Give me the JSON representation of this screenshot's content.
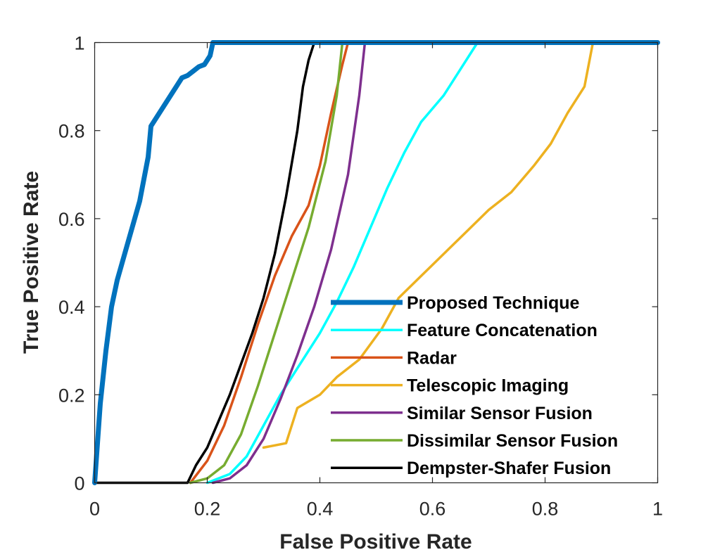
{
  "chart_data": {
    "type": "line",
    "title": "",
    "xlabel": "False Positive Rate",
    "ylabel": "True Positive Rate",
    "xlim": [
      0,
      1
    ],
    "ylim": [
      0,
      1
    ],
    "xticks": [
      0,
      0.2,
      0.4,
      0.6,
      0.8,
      1
    ],
    "yticks": [
      0,
      0.2,
      0.4,
      0.6,
      0.8,
      1
    ],
    "xtick_labels": [
      "0",
      "0.2",
      "0.4",
      "0.6",
      "0.8",
      "1"
    ],
    "ytick_labels": [
      "0",
      "0.2",
      "0.4",
      "0.6",
      "0.8",
      "1"
    ],
    "grid": false,
    "legend_position": "lower-right",
    "series": [
      {
        "name": "Proposed Technique",
        "color": "#0072BD",
        "emphasis": "thick",
        "x": [
          0,
          0.01,
          0.02,
          0.03,
          0.04,
          0.06,
          0.08,
          0.095,
          0.1,
          0.12,
          0.14,
          0.155,
          0.165,
          0.175,
          0.185,
          0.195,
          0.205,
          0.21,
          1
        ],
        "y": [
          0,
          0.18,
          0.3,
          0.4,
          0.46,
          0.55,
          0.64,
          0.74,
          0.81,
          0.85,
          0.89,
          0.92,
          0.925,
          0.935,
          0.945,
          0.95,
          0.97,
          1,
          1
        ]
      },
      {
        "name": "Feature Concatenation",
        "color": "#00FFFF",
        "emphasis": "normal",
        "x": [
          0.2,
          0.24,
          0.27,
          0.3,
          0.33,
          0.36,
          0.4,
          0.43,
          0.46,
          0.49,
          0.52,
          0.55,
          0.58,
          0.62,
          0.65,
          0.68,
          1
        ],
        "y": [
          0,
          0.02,
          0.06,
          0.13,
          0.2,
          0.26,
          0.34,
          0.41,
          0.49,
          0.58,
          0.67,
          0.75,
          0.82,
          0.88,
          0.94,
          1,
          1
        ]
      },
      {
        "name": "Radar",
        "color": "#D95319",
        "emphasis": "normal",
        "x": [
          0.17,
          0.2,
          0.23,
          0.26,
          0.29,
          0.32,
          0.35,
          0.38,
          0.4,
          0.42,
          0.44,
          0.45,
          1
        ],
        "y": [
          0,
          0.05,
          0.13,
          0.24,
          0.36,
          0.47,
          0.56,
          0.63,
          0.72,
          0.84,
          0.95,
          1,
          1
        ]
      },
      {
        "name": "Telescopic Imaging",
        "color": "#EDB120",
        "emphasis": "normal",
        "x": [
          0.3,
          0.34,
          0.345,
          0.36,
          0.4,
          0.43,
          0.47,
          0.51,
          0.54,
          0.58,
          0.62,
          0.66,
          0.7,
          0.74,
          0.78,
          0.81,
          0.84,
          0.87,
          0.885,
          1
        ],
        "y": [
          0.08,
          0.09,
          0.11,
          0.17,
          0.2,
          0.24,
          0.28,
          0.35,
          0.42,
          0.47,
          0.52,
          0.57,
          0.62,
          0.66,
          0.72,
          0.77,
          0.84,
          0.9,
          1,
          1
        ]
      },
      {
        "name": "Similar Sensor Fusion",
        "color": "#7E2F8E",
        "emphasis": "normal",
        "x": [
          0.21,
          0.24,
          0.27,
          0.3,
          0.33,
          0.36,
          0.39,
          0.42,
          0.45,
          0.47,
          0.48,
          1
        ],
        "y": [
          0,
          0.01,
          0.04,
          0.1,
          0.19,
          0.29,
          0.4,
          0.53,
          0.7,
          0.88,
          1,
          1
        ]
      },
      {
        "name": "Dissimilar Sensor Fusion",
        "color": "#77AC30",
        "emphasis": "normal",
        "x": [
          0.17,
          0.2,
          0.23,
          0.26,
          0.29,
          0.32,
          0.35,
          0.38,
          0.41,
          0.43,
          0.44,
          1
        ],
        "y": [
          0,
          0.01,
          0.04,
          0.11,
          0.22,
          0.34,
          0.46,
          0.58,
          0.73,
          0.88,
          1,
          1
        ]
      },
      {
        "name": "Dempster-Shafer Fusion",
        "color": "#000000",
        "emphasis": "normal",
        "x": [
          0,
          0.165,
          0.18,
          0.2,
          0.22,
          0.24,
          0.26,
          0.28,
          0.3,
          0.32,
          0.34,
          0.36,
          0.37,
          0.38,
          0.39,
          1
        ],
        "y": [
          0,
          0,
          0.04,
          0.08,
          0.14,
          0.2,
          0.27,
          0.34,
          0.42,
          0.52,
          0.65,
          0.8,
          0.9,
          0.96,
          1,
          1
        ]
      }
    ]
  }
}
